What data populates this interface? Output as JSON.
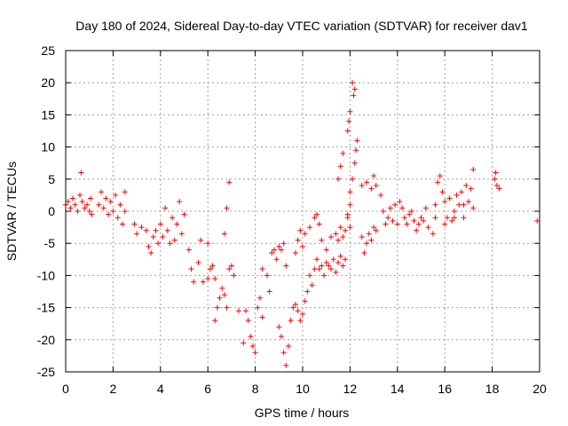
{
  "chart_data": {
    "type": "scatter",
    "title": "Day 180 of 2024, Sidereal Day-to-day VTEC variation (SDTVAR) for receiver dav1",
    "xlabel": "GPS time / hours",
    "ylabel": "SDTVAR / TECUs",
    "xlim": [
      0,
      20
    ],
    "ylim": [
      -25,
      25
    ],
    "x_ticks": [
      0,
      2,
      4,
      6,
      8,
      10,
      12,
      14,
      16,
      18,
      20
    ],
    "y_ticks": [
      -25,
      -20,
      -15,
      -10,
      -5,
      0,
      5,
      10,
      15,
      20,
      25
    ],
    "grid": true,
    "marker": "plus",
    "marker_color": "#ff0000",
    "series": [
      {
        "name": "SDTVAR",
        "points": [
          [
            0.0,
            1.0
          ],
          [
            0.1,
            1.5
          ],
          [
            0.2,
            0.5
          ],
          [
            0.3,
            2.0
          ],
          [
            0.4,
            1.0
          ],
          [
            0.5,
            0.0
          ],
          [
            0.6,
            2.5
          ],
          [
            0.7,
            1.5
          ],
          [
            0.8,
            0.5
          ],
          [
            0.9,
            1.0
          ],
          [
            1.0,
            0.0
          ],
          [
            1.05,
            2.0
          ],
          [
            1.1,
            -0.5
          ],
          [
            0.65,
            6.0
          ],
          [
            1.4,
            1.0
          ],
          [
            1.5,
            3.0
          ],
          [
            1.6,
            0.5
          ],
          [
            1.7,
            2.0
          ],
          [
            1.8,
            -0.5
          ],
          [
            1.9,
            1.5
          ],
          [
            2.0,
            0.0
          ],
          [
            2.1,
            2.5
          ],
          [
            2.2,
            -1.0
          ],
          [
            2.3,
            1.0
          ],
          [
            2.4,
            -2.0
          ],
          [
            2.5,
            0.0
          ],
          [
            2.5,
            3.0
          ],
          [
            2.9,
            -2.0
          ],
          [
            3.0,
            -3.5
          ],
          [
            3.2,
            -2.5
          ],
          [
            3.4,
            -3.0
          ],
          [
            3.5,
            -5.5
          ],
          [
            3.6,
            -6.5
          ],
          [
            3.7,
            -4.0
          ],
          [
            3.8,
            -3.0
          ],
          [
            3.9,
            -5.0
          ],
          [
            4.0,
            -2.0
          ],
          [
            4.1,
            -4.0
          ],
          [
            4.2,
            0.5
          ],
          [
            4.3,
            -3.0
          ],
          [
            4.4,
            -5.0
          ],
          [
            4.5,
            -1.0
          ],
          [
            4.6,
            -4.5
          ],
          [
            4.7,
            -2.0
          ],
          [
            4.8,
            1.5
          ],
          [
            4.9,
            -3.5
          ],
          [
            5.0,
            -0.5
          ],
          [
            5.2,
            -6.0
          ],
          [
            5.3,
            -9.0
          ],
          [
            5.4,
            -11.0
          ],
          [
            5.6,
            -8.0
          ],
          [
            5.8,
            -11.0
          ],
          [
            6.0,
            -10.5
          ],
          [
            6.1,
            -9.0
          ],
          [
            6.2,
            -8.5
          ],
          [
            6.3,
            -10.5
          ],
          [
            5.7,
            -4.5
          ],
          [
            6.0,
            -5.0
          ],
          [
            6.3,
            -17.0
          ],
          [
            6.4,
            -15.0
          ],
          [
            6.5,
            -13.5
          ],
          [
            6.6,
            -12.0
          ],
          [
            6.7,
            -13.0
          ],
          [
            6.8,
            -15.0
          ],
          [
            6.9,
            -9.0
          ],
          [
            7.0,
            -8.5
          ],
          [
            7.1,
            -10.0
          ],
          [
            6.7,
            -3.5
          ],
          [
            6.8,
            0.5
          ],
          [
            6.9,
            4.5
          ],
          [
            7.3,
            -15.5
          ],
          [
            7.6,
            -15.5
          ],
          [
            7.7,
            -17.0
          ],
          [
            7.5,
            -20.5
          ],
          [
            7.8,
            -19.5
          ],
          [
            7.9,
            -21.0
          ],
          [
            8.0,
            -22.0
          ],
          [
            8.1,
            -15.0
          ],
          [
            8.2,
            -13.5
          ],
          [
            8.3,
            -16.5
          ],
          [
            8.3,
            -9.0
          ],
          [
            8.5,
            -10.0
          ],
          [
            8.6,
            -12.5
          ],
          [
            8.7,
            -6.5
          ],
          [
            8.8,
            -6.0
          ],
          [
            8.9,
            -7.5
          ],
          [
            9.0,
            -5.5
          ],
          [
            9.1,
            -6.0
          ],
          [
            9.2,
            -5.0
          ],
          [
            9.3,
            -8.5
          ],
          [
            9.0,
            -18.0
          ],
          [
            9.1,
            -19.5
          ],
          [
            9.2,
            -22.0
          ],
          [
            9.3,
            -24.0
          ],
          [
            9.4,
            -21.0
          ],
          [
            9.5,
            -17.0
          ],
          [
            9.6,
            -15.0
          ],
          [
            9.7,
            -14.5
          ],
          [
            9.8,
            -15.5
          ],
          [
            9.9,
            -17.0
          ],
          [
            10.0,
            -16.0
          ],
          [
            10.1,
            -14.0
          ],
          [
            10.2,
            -12.5
          ],
          [
            10.3,
            -10.0
          ],
          [
            10.4,
            -11.5
          ],
          [
            10.5,
            -9.0
          ],
          [
            10.6,
            -7.5
          ],
          [
            10.7,
            -9.0
          ],
          [
            10.8,
            -8.5
          ],
          [
            10.9,
            -10.0
          ],
          [
            11.0,
            -8.0
          ],
          [
            11.1,
            -8.5
          ],
          [
            11.2,
            -9.0
          ],
          [
            11.3,
            -7.5
          ],
          [
            11.4,
            -9.5
          ],
          [
            11.5,
            -8.0
          ],
          [
            11.6,
            -7.0
          ],
          [
            11.7,
            -8.5
          ],
          [
            11.8,
            -7.5
          ],
          [
            9.7,
            -6.5
          ],
          [
            9.8,
            -4.5
          ],
          [
            9.9,
            -3.0
          ],
          [
            10.0,
            -5.5
          ],
          [
            10.1,
            -3.5
          ],
          [
            10.3,
            -2.5
          ],
          [
            10.5,
            -1.0
          ],
          [
            10.6,
            -0.5
          ],
          [
            10.7,
            -2.0
          ],
          [
            10.8,
            -4.5
          ],
          [
            11.0,
            -6.0
          ],
          [
            11.2,
            -4.0
          ],
          [
            11.4,
            -3.5
          ],
          [
            11.5,
            -4.5
          ],
          [
            11.6,
            -2.5
          ],
          [
            11.7,
            -4.0
          ],
          [
            11.9,
            12.5
          ],
          [
            11.95,
            14.0
          ],
          [
            12.0,
            15.5
          ],
          [
            12.1,
            20.0
          ],
          [
            12.15,
            18.0
          ],
          [
            12.2,
            19.0
          ],
          [
            12.3,
            11.0
          ],
          [
            12.25,
            9.5
          ],
          [
            12.2,
            7.5
          ],
          [
            12.1,
            5.0
          ],
          [
            12.0,
            3.0
          ],
          [
            12.0,
            1.0
          ],
          [
            11.9,
            -1.0
          ],
          [
            11.8,
            -3.0
          ],
          [
            11.9,
            -0.5
          ],
          [
            12.0,
            -2.5
          ],
          [
            11.5,
            5.0
          ],
          [
            11.6,
            7.0
          ],
          [
            11.7,
            9.0
          ],
          [
            12.5,
            -4.0
          ],
          [
            12.6,
            -6.5
          ],
          [
            12.7,
            -5.0
          ],
          [
            12.8,
            -3.5
          ],
          [
            12.9,
            -4.5
          ],
          [
            13.0,
            -2.5
          ],
          [
            13.1,
            -3.0
          ],
          [
            12.5,
            4.0
          ],
          [
            12.7,
            4.5
          ],
          [
            12.9,
            3.5
          ],
          [
            13.0,
            5.5
          ],
          [
            13.1,
            4.0
          ],
          [
            13.3,
            2.5
          ],
          [
            13.4,
            0.0
          ],
          [
            13.5,
            -2.0
          ],
          [
            13.6,
            -1.0
          ],
          [
            13.7,
            0.5
          ],
          [
            13.8,
            -1.5
          ],
          [
            13.9,
            1.0
          ],
          [
            14.0,
            -2.0
          ],
          [
            14.1,
            1.5
          ],
          [
            14.2,
            0.5
          ],
          [
            14.3,
            -1.0
          ],
          [
            14.4,
            -2.0
          ],
          [
            14.5,
            -0.5
          ],
          [
            14.6,
            0.0
          ],
          [
            14.7,
            -1.5
          ],
          [
            14.8,
            -3.0
          ],
          [
            14.9,
            -2.0
          ],
          [
            15.0,
            -1.0
          ],
          [
            15.1,
            -1.5
          ],
          [
            15.3,
            -2.5
          ],
          [
            15.5,
            -3.5
          ],
          [
            15.6,
            1.0
          ],
          [
            15.7,
            4.5
          ],
          [
            15.8,
            5.5
          ],
          [
            15.9,
            3.0
          ],
          [
            16.0,
            1.5
          ],
          [
            16.1,
            -1.0
          ],
          [
            16.2,
            2.0
          ],
          [
            16.3,
            -1.5
          ],
          [
            16.4,
            0.0
          ],
          [
            16.5,
            2.5
          ],
          [
            16.6,
            1.0
          ],
          [
            16.7,
            3.0
          ],
          [
            16.8,
            -1.0
          ],
          [
            16.9,
            4.0
          ],
          [
            17.0,
            1.5
          ],
          [
            17.1,
            3.5
          ],
          [
            17.2,
            6.5
          ],
          [
            17.2,
            0.5
          ],
          [
            15.2,
            0.5
          ],
          [
            15.6,
            -1.0
          ],
          [
            16.0,
            -2.0
          ],
          [
            16.4,
            -1.0
          ],
          [
            16.8,
            1.0
          ],
          [
            18.1,
            5.0
          ],
          [
            18.2,
            4.0
          ],
          [
            18.3,
            3.5
          ],
          [
            18.15,
            6.0
          ],
          [
            19.9,
            -1.5
          ]
        ]
      }
    ]
  }
}
